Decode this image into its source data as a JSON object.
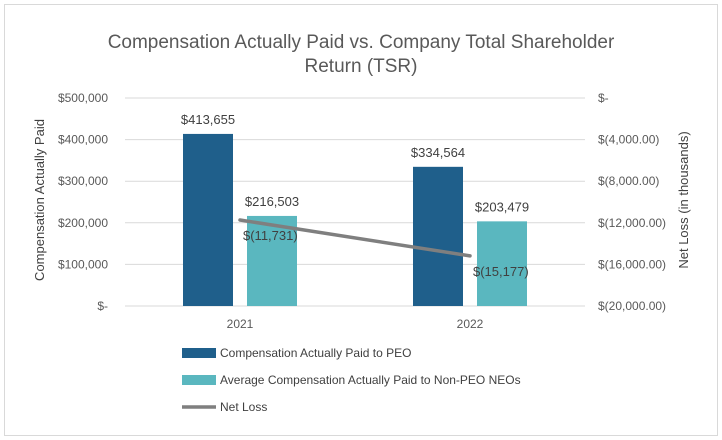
{
  "chart_data": {
    "type": "bar",
    "title_line1": "Compensation Actually Paid vs. Company Total Shareholder",
    "title_line2": "Return (TSR)",
    "categories": [
      "2021",
      "2022"
    ],
    "ylabel": "Compensation Actually Paid",
    "y2label": "Net Loss (in thousands)",
    "ylim": [
      0,
      500000
    ],
    "yticks": [
      0,
      100000,
      200000,
      300000,
      400000,
      500000
    ],
    "ytick_labels": [
      "$-",
      "$100,000",
      "$200,000",
      "$300,000",
      "$400,000",
      "$500,000"
    ],
    "y2lim": [
      -20000,
      0
    ],
    "y2ticks": [
      0,
      -4000,
      -8000,
      -12000,
      -16000,
      -20000
    ],
    "y2tick_labels": [
      "$-",
      "$(4,000.00)",
      "$(8,000.00)",
      "$(12,000.00)",
      "$(16,000.00)",
      "$(20,000.00)"
    ],
    "series": [
      {
        "name": "Compensation Actually Paid to PEO",
        "kind": "bar",
        "axis": "left",
        "color": "#1f5f8b",
        "values": [
          413655,
          334564
        ],
        "labels": [
          "$413,655",
          "$334,564"
        ]
      },
      {
        "name": "Average Compensation Actually Paid to Non-PEO NEOs",
        "kind": "bar",
        "axis": "left",
        "color": "#5ab7bf",
        "values": [
          216503,
          203479
        ],
        "labels": [
          "$216,503",
          "$203,479"
        ]
      },
      {
        "name": "Net Loss",
        "kind": "line",
        "axis": "right",
        "color": "#7f7f7f",
        "values": [
          -11731,
          -15177
        ],
        "labels": [
          "$(11,731)",
          "$(15,177)"
        ]
      }
    ],
    "legend_position": "bottom"
  }
}
